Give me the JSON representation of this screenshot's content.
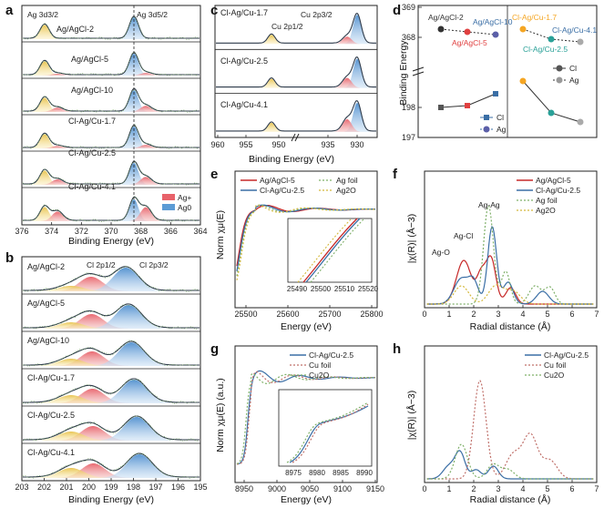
{
  "panels": {
    "a": {
      "letter": "a",
      "top_labels": [
        "Ag 3d3/2",
        "Ag 3d5/2"
      ],
      "samples": [
        "Ag/AgCl-2",
        "Ag/AgCl-5",
        "Ag/AgCl-10",
        "Cl-Ag/Cu-1.7",
        "Cl-Ag/Cu-2.5",
        "Cl-Ag/Cu-4.1"
      ],
      "legend": [
        "Ag+",
        "Ag0"
      ],
      "xticks": [
        "376",
        "374",
        "372",
        "370",
        "368",
        "366",
        "364"
      ],
      "xlabel": "Binding Energy (eV)"
    },
    "b": {
      "letter": "b",
      "top_labels": [
        "Cl 2p1/2",
        "Cl 2p3/2"
      ],
      "samples": [
        "Ag/AgCl-2",
        "Ag/AgCl-5",
        "Ag/AgCl-10",
        "Cl-Ag/Cu-1.7",
        "Cl-Ag/Cu-2.5",
        "Cl-Ag/Cu-4.1"
      ],
      "xticks": [
        "203",
        "202",
        "201",
        "200",
        "199",
        "198",
        "197",
        "196",
        "195"
      ],
      "xlabel": "Binding Energy (eV)"
    },
    "c": {
      "letter": "c",
      "top_labels": [
        "Cu 2p1/2",
        "Cu 2p3/2"
      ],
      "samples": [
        "Cl-Ag/Cu-1.7",
        "Cl-Ag/Cu-2.5",
        "Cl-Ag/Cu-4.1"
      ],
      "xticks": [
        "960",
        "955",
        "950",
        "935",
        "930"
      ],
      "xlabel": "Binding Energy (eV)"
    },
    "d": {
      "letter": "d",
      "ylabel": "Binding Energy",
      "yticks_top": [
        "369",
        "368"
      ],
      "yticks_bottom": [
        "198",
        "197"
      ],
      "left_points_top": [
        "Ag/AgCl-2",
        "Ag/AgCl-5",
        "Ag/AgCl-10"
      ],
      "right_points_top": [
        "Cl-Ag/Cu-1.7",
        "Cl-Ag/Cu-2.5",
        "Cl-Ag/Cu-4.1"
      ],
      "legend_left": [
        "Cl",
        "Ag"
      ],
      "legend_right": [
        "Cl",
        "Ag"
      ]
    },
    "e": {
      "letter": "e",
      "ylabel": "Norm χμ(E)",
      "legend": [
        "Ag/AgCl-5",
        "Cl-Ag/Cu-2.5",
        "Ag foil",
        "Ag2O"
      ],
      "xticks": [
        "25500",
        "25600",
        "25700",
        "25800"
      ],
      "inset_xticks": [
        "25490",
        "25500",
        "25510",
        "25520"
      ],
      "xlabel": "Energy (eV)"
    },
    "f": {
      "letter": "f",
      "ylabel": "|χ(R)| (Å−3)",
      "legend": [
        "Ag/AgCl-5",
        "Cl-Ag/Cu-2.5",
        "Ag foil",
        "Ag2O"
      ],
      "annotations": [
        "Ag-Ag",
        "Ag-Cl",
        "Ag-O"
      ],
      "xticks": [
        "0",
        "1",
        "2",
        "3",
        "4",
        "5",
        "6",
        "7"
      ],
      "xlabel": "Radial distance (Å)"
    },
    "g": {
      "letter": "g",
      "ylabel": "Norm χμ(E) (a.u.)",
      "legend": [
        "Cl-Ag/Cu-2.5",
        "Cu foil",
        "Cu2O"
      ],
      "xticks": [
        "8950",
        "9000",
        "9050",
        "9100",
        "9150"
      ],
      "inset_xticks": [
        "8975",
        "8980",
        "8985",
        "8990"
      ],
      "xlabel": "Energy (eV)"
    },
    "h": {
      "letter": "h",
      "ylabel": "|χ(R)| (Å−3)",
      "legend": [
        "Cl-Ag/Cu-2.5",
        "Cu foil",
        "Cu2O"
      ],
      "xticks": [
        "0",
        "1",
        "2",
        "3",
        "4",
        "5",
        "6",
        "7"
      ],
      "xlabel": "Radial distance (Å)"
    }
  },
  "colors": {
    "ag_plus": "#e8626a",
    "ag_zero": "#5b9bd5",
    "cl_red": "#c0392b",
    "cl_yellow": "#e8c24a",
    "dark_line": "#2d3a4a",
    "series_red": "#c62828",
    "series_blue": "#3a6ea5",
    "series_green": "#7fb069",
    "series_yellow": "#d4b83a",
    "point_teal": "#2aa198",
    "point_orange": "#f5a623"
  }
}
